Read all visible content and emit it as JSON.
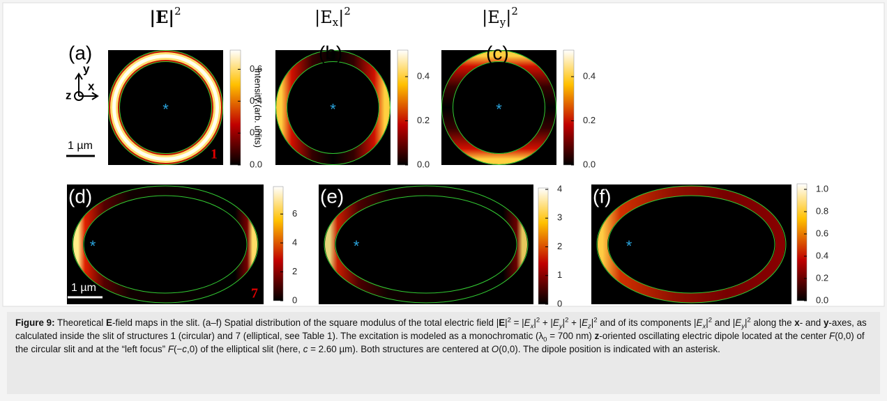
{
  "figure": {
    "column_titles": [
      {
        "text": "|E|",
        "sup": "2"
      },
      {
        "text": "|E",
        "sub": "x",
        "end": "|",
        "sup": "2"
      },
      {
        "text": "|E",
        "sub": "y",
        "end": "|",
        "sup": "2"
      }
    ],
    "axes": {
      "y": "y",
      "x": "x",
      "z": "z"
    },
    "scale_bar": "1 µm",
    "colorbar_label": "Intensity (arb. units)",
    "dipole_marker": "*",
    "panels": [
      {
        "label": "(a)",
        "structure": "1",
        "clim": [
          0,
          0.72
        ],
        "ticks": [
          {
            "value": 0,
            "label": "0.0"
          },
          0.2,
          0.4,
          0.6
        ]
      },
      {
        "label": "(b)",
        "clim": [
          0,
          0.52
        ],
        "ticks": [
          {
            "value": 0,
            "label": "0.0"
          },
          0.2,
          0.4
        ]
      },
      {
        "label": "(c)",
        "clim": [
          0,
          0.52
        ],
        "ticks": [
          {
            "value": 0,
            "label": "0.0"
          },
          0.2,
          0.4
        ]
      },
      {
        "label": "(d)",
        "structure": "7",
        "clim": [
          0,
          7.9
        ],
        "ticks": [
          0,
          2,
          4,
          6
        ]
      },
      {
        "label": "(e)",
        "clim": [
          0,
          4.05
        ],
        "ticks": [
          0,
          1,
          2,
          3,
          4
        ]
      },
      {
        "label": "(f)",
        "clim": [
          0,
          1.05
        ],
        "ticks": [
          {
            "value": 0,
            "label": "0.0"
          },
          0.2,
          0.4,
          0.6,
          0.8,
          {
            "value": 1,
            "label": "1.0"
          }
        ]
      }
    ]
  },
  "caption": [
    {
      "t": "Figure 9:",
      "s": "b"
    },
    {
      "t": " Theoretical "
    },
    {
      "t": "E",
      "s": "b"
    },
    {
      "t": "-field maps in the slit. (a–f) Spatial distribution of the square modulus of the total electric field |"
    },
    {
      "t": "E",
      "s": "b"
    },
    {
      "t": "|"
    },
    {
      "t": "2",
      "s": "sup"
    },
    {
      "t": " = |"
    },
    {
      "t": "E",
      "s": "i"
    },
    {
      "t": "x",
      "s": "isub"
    },
    {
      "t": "|"
    },
    {
      "t": "2",
      "s": "sup"
    },
    {
      "t": " + |"
    },
    {
      "t": "E",
      "s": "i"
    },
    {
      "t": "y",
      "s": "isub"
    },
    {
      "t": "|"
    },
    {
      "t": "2",
      "s": "sup"
    },
    {
      "t": " + |"
    },
    {
      "t": "E",
      "s": "i"
    },
    {
      "t": "z",
      "s": "isub"
    },
    {
      "t": "|"
    },
    {
      "t": "2",
      "s": "sup"
    },
    {
      "t": " and of its components |"
    },
    {
      "t": "E",
      "s": "i"
    },
    {
      "t": "x",
      "s": "isub"
    },
    {
      "t": "|"
    },
    {
      "t": "2",
      "s": "sup"
    },
    {
      "t": " and |"
    },
    {
      "t": "E",
      "s": "i"
    },
    {
      "t": "y",
      "s": "isub"
    },
    {
      "t": "|"
    },
    {
      "t": "2",
      "s": "sup"
    },
    {
      "t": " along the "
    },
    {
      "t": "x",
      "s": "b"
    },
    {
      "t": "- and "
    },
    {
      "t": "y",
      "s": "b"
    },
    {
      "t": "-axes, as calculated inside the slit of structures 1 (circular) and 7 (elliptical, see Table 1). The excitation is modeled as a monochromatic (λ"
    },
    {
      "t": "0",
      "s": "sub"
    },
    {
      "t": " = 700 nm) "
    },
    {
      "t": "z",
      "s": "b"
    },
    {
      "t": "-oriented oscillating electric dipole located at the center "
    },
    {
      "t": "F",
      "s": "i"
    },
    {
      "t": "(0,0) of the circular slit and at the “left focus” "
    },
    {
      "t": "F",
      "s": "i"
    },
    {
      "t": "(−"
    },
    {
      "t": "c",
      "s": "i"
    },
    {
      "t": ",0) of the elliptical slit (here, "
    },
    {
      "t": "c",
      "s": "i"
    },
    {
      "t": " = 2.60 µm). Both structures are centered at "
    },
    {
      "t": "O",
      "s": "i"
    },
    {
      "t": "(0,0). The dipole position is indicated with an asterisk."
    }
  ]
}
